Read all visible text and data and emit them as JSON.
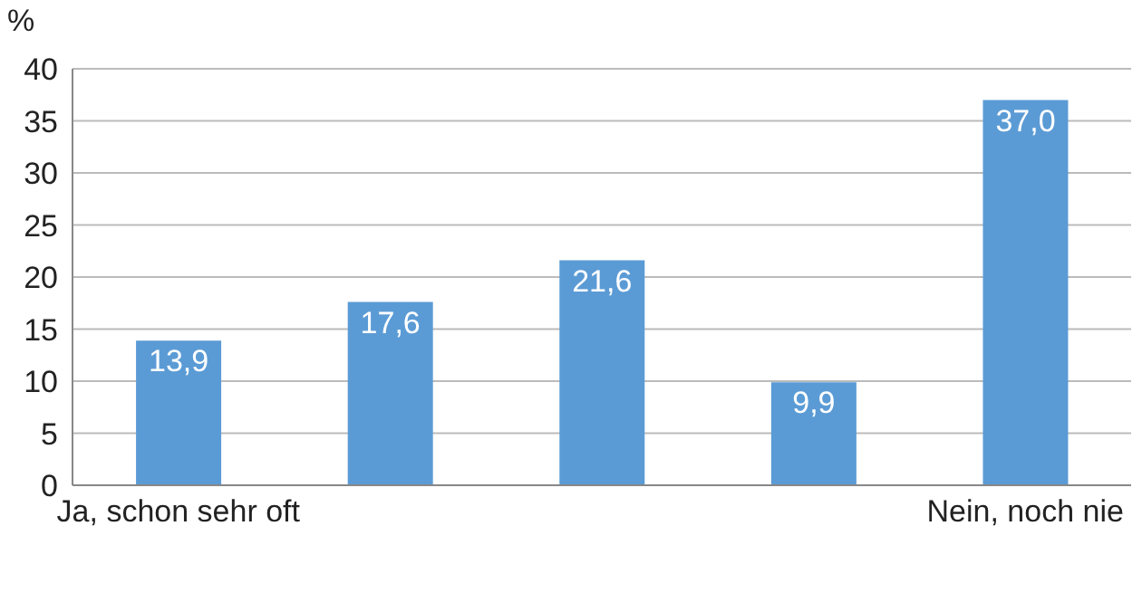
{
  "chart_data": {
    "type": "bar",
    "ylabel": "%",
    "categories": [
      "Ja, schon sehr oft",
      null,
      null,
      null,
      "Nein, noch nie"
    ],
    "values": [
      13.9,
      17.6,
      21.6,
      9.9,
      37.0
    ],
    "value_labels": [
      "13,9",
      "17,6",
      "21,6",
      "9,9",
      "37,0"
    ],
    "color": "#5b9bd5",
    "ylim": [
      0,
      40
    ],
    "yticks": [
      0,
      5,
      10,
      15,
      20,
      25,
      30,
      35,
      40
    ],
    "grid": "y",
    "legend": false
  }
}
